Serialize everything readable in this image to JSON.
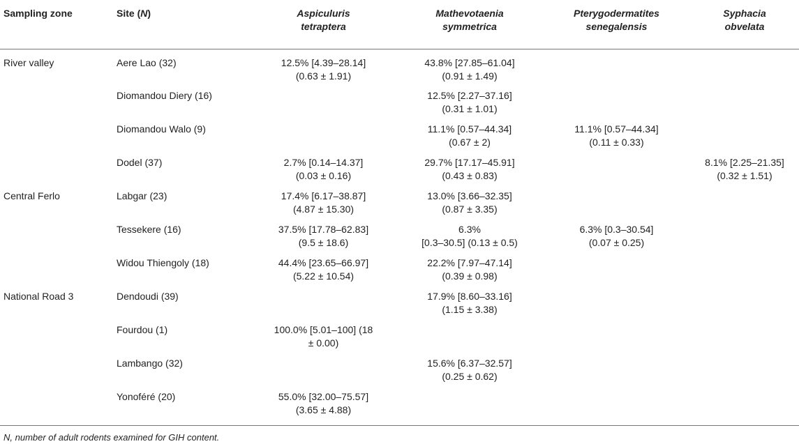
{
  "headers": {
    "sampling_zone": "Sampling zone",
    "site_prefix": "Site (",
    "site_n": "N",
    "site_suffix": ")",
    "species": [
      {
        "line1": "Aspiculuris",
        "line2": "tetraptera"
      },
      {
        "line1": "Mathevotaenia",
        "line2": "symmetrica"
      },
      {
        "line1": "Pterygodermatites",
        "line2": "senegalensis"
      },
      {
        "line1": "Syphacia",
        "line2": "obvelata"
      }
    ]
  },
  "rows": [
    {
      "zone": "River valley",
      "site": "Aere Lao (32)",
      "a1": "12.5% [4.39–28.14]",
      "a2": "(0.63 ± 1.91)",
      "m1": "43.8% [27.85–61.04]",
      "m2": "(0.91 ± 1.49)",
      "p1": "",
      "p2": "",
      "s1": "",
      "s2": ""
    },
    {
      "zone": "",
      "site": "Diomandou Diery (16)",
      "a1": "",
      "a2": "",
      "m1": "12.5% [2.27–37.16]",
      "m2": "(0.31 ± 1.01)",
      "p1": "",
      "p2": "",
      "s1": "",
      "s2": ""
    },
    {
      "zone": "",
      "site": "Diomandou Walo (9)",
      "a1": "",
      "a2": "",
      "m1": "11.1% [0.57–44.34]",
      "m2": "(0.67 ± 2)",
      "p1": "11.1% [0.57–44.34]",
      "p2": "(0.11 ± 0.33)",
      "s1": "",
      "s2": ""
    },
    {
      "zone": "",
      "site": "Dodel (37)",
      "a1": "2.7% [0.14–14.37]",
      "a2": "(0.03 ± 0.16)",
      "m1": "29.7% [17.17–45.91]",
      "m2": "(0.43 ± 0.83)",
      "p1": "",
      "p2": "",
      "s1": "8.1% [2.25–21.35]",
      "s2": "(0.32 ± 1.51)"
    },
    {
      "zone": "Central Ferlo",
      "site": "Labgar (23)",
      "a1": "17.4% [6.17–38.87]",
      "a2": "(4.87 ± 15.30)",
      "m1": "13.0% [3.66–32.35]",
      "m2": "(0.87 ± 3.35)",
      "p1": "",
      "p2": "",
      "s1": "",
      "s2": ""
    },
    {
      "zone": "",
      "site": "Tessekere (16)",
      "a1": "37.5% [17.78–62.83]",
      "a2": "(9.5 ± 18.6)",
      "m1": "6.3%",
      "m2": "[0.3–30.5] (0.13 ± 0.5)",
      "p1": "6.3% [0.3–30.54]",
      "p2": "(0.07 ± 0.25)",
      "s1": "",
      "s2": ""
    },
    {
      "zone": "",
      "site": "Widou Thiengoly (18)",
      "a1": "44.4% [23.65–66.97]",
      "a2": "(5.22 ± 10.54)",
      "m1": "22.2% [7.97–47.14]",
      "m2": "(0.39 ± 0.98)",
      "p1": "",
      "p2": "",
      "s1": "",
      "s2": ""
    },
    {
      "zone": "National Road 3",
      "site": "Dendoudi (39)",
      "a1": "",
      "a2": "",
      "m1": "17.9% [8.60–33.16]",
      "m2": "(1.15 ± 3.38)",
      "p1": "",
      "p2": "",
      "s1": "",
      "s2": ""
    },
    {
      "zone": "",
      "site": "Fourdou (1)",
      "a1": "100.0% [5.01–100] (18",
      "a2": "± 0.00)",
      "m1": "",
      "m2": "",
      "p1": "",
      "p2": "",
      "s1": "",
      "s2": ""
    },
    {
      "zone": "",
      "site": "Lambango (32)",
      "a1": "",
      "a2": "",
      "m1": "15.6% [6.37–32.57]",
      "m2": "(0.25 ± 0.62)",
      "p1": "",
      "p2": "",
      "s1": "",
      "s2": ""
    },
    {
      "zone": "",
      "site": "Yonoféré (20)",
      "a1": "55.0% [32.00–75.57]",
      "a2": "(3.65 ± 4.88)",
      "m1": "",
      "m2": "",
      "p1": "",
      "p2": "",
      "s1": "",
      "s2": ""
    }
  ],
  "footnote": "N, number of adult rodents examined for GIH content."
}
